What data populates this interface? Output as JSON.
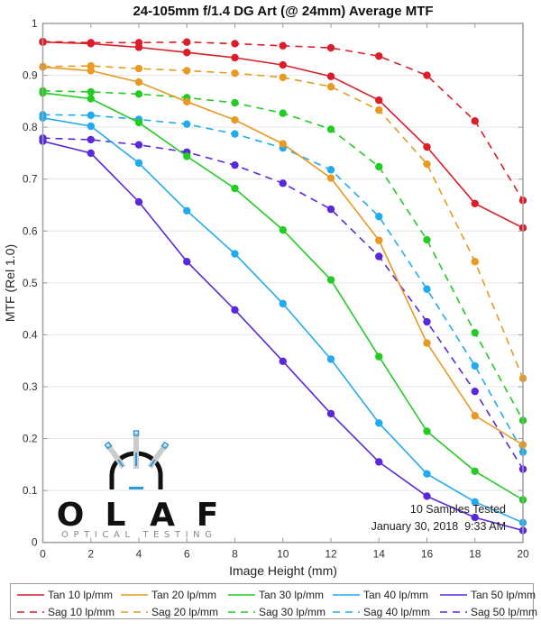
{
  "chart_data": {
    "type": "line",
    "title": "24-105mm f/1.4 DG Art (@ 24mm) Average MTF",
    "xlabel": "Image Height (mm)",
    "ylabel": "MTF (Rel 1.0)",
    "xlim": [
      0,
      20
    ],
    "ylim": [
      0,
      1
    ],
    "x_ticks": [
      "0",
      "2",
      "4",
      "6",
      "8",
      "10",
      "12",
      "14",
      "16",
      "18",
      "20"
    ],
    "y_ticks": [
      "0",
      "0.1",
      "0.2",
      "0.3",
      "0.4",
      "0.5",
      "0.6",
      "0.7",
      "0.8",
      "0.9",
      "1"
    ],
    "grid": true,
    "legend_position": "bottom",
    "x": [
      0,
      2,
      4,
      6,
      8,
      10,
      12,
      14,
      16,
      18,
      20
    ],
    "series": [
      {
        "name": "Tan 10 lp/mm",
        "style": "solid",
        "color": "#dc1c28",
        "values": [
          0.964,
          0.961,
          0.954,
          0.944,
          0.934,
          0.92,
          0.898,
          0.852,
          0.762,
          0.653,
          0.606
        ]
      },
      {
        "name": "Tan 20 lp/mm",
        "style": "solid",
        "color": "#e89a22",
        "values": [
          0.916,
          0.909,
          0.887,
          0.849,
          0.814,
          0.768,
          0.702,
          0.582,
          0.384,
          0.244,
          0.188
        ]
      },
      {
        "name": "Tan 30 lp/mm",
        "style": "solid",
        "color": "#22cc22",
        "values": [
          0.866,
          0.855,
          0.809,
          0.744,
          0.682,
          0.602,
          0.506,
          0.358,
          0.214,
          0.137,
          0.082
        ]
      },
      {
        "name": "Tan 40 lp/mm",
        "style": "solid",
        "color": "#22aaf0",
        "values": [
          0.818,
          0.802,
          0.731,
          0.639,
          0.556,
          0.46,
          0.353,
          0.23,
          0.132,
          0.078,
          0.038
        ]
      },
      {
        "name": "Tan 50 lp/mm",
        "style": "solid",
        "color": "#5a28dc",
        "values": [
          0.773,
          0.75,
          0.656,
          0.541,
          0.448,
          0.349,
          0.248,
          0.155,
          0.089,
          0.048,
          0.023
        ]
      },
      {
        "name": "Sag 10 lp/mm",
        "style": "dashed",
        "color": "#dc1c28",
        "values": [
          0.965,
          0.963,
          0.963,
          0.964,
          0.961,
          0.957,
          0.953,
          0.937,
          0.9,
          0.812,
          0.659
        ]
      },
      {
        "name": "Sag 20 lp/mm",
        "style": "dashed",
        "color": "#e89a22",
        "values": [
          0.917,
          0.918,
          0.913,
          0.909,
          0.904,
          0.896,
          0.878,
          0.833,
          0.729,
          0.541,
          0.316
        ]
      },
      {
        "name": "Sag 30 lp/mm",
        "style": "dashed",
        "color": "#22cc22",
        "values": [
          0.87,
          0.868,
          0.864,
          0.857,
          0.847,
          0.827,
          0.796,
          0.724,
          0.583,
          0.404,
          0.235
        ]
      },
      {
        "name": "Sag 40 lp/mm",
        "style": "dashed",
        "color": "#22aaf0",
        "values": [
          0.824,
          0.823,
          0.815,
          0.806,
          0.787,
          0.76,
          0.718,
          0.628,
          0.488,
          0.34,
          0.174
        ]
      },
      {
        "name": "Sag 50 lp/mm",
        "style": "dashed",
        "color": "#5a28dc",
        "values": [
          0.779,
          0.776,
          0.766,
          0.752,
          0.727,
          0.692,
          0.642,
          0.551,
          0.425,
          0.291,
          0.141
        ]
      }
    ],
    "annotations": [
      "10 Samples Tested",
      "January 30, 2018  9:33 AM"
    ]
  },
  "logo": {
    "letters": [
      "O",
      "L",
      "A",
      "F"
    ],
    "subtitle": "OPTICAL TESTING",
    "accent_color": "#2a9ad8"
  }
}
